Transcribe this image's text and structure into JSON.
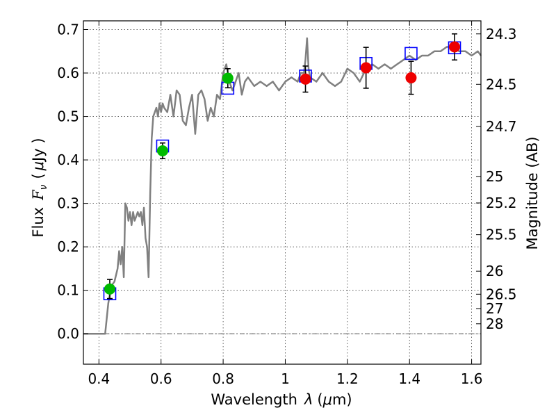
{
  "chart_data": {
    "type": "scatter",
    "xlabel_text": "Wavelength",
    "xlabel_symbol": "λ",
    "xlabel_unit_open": "(",
    "xlabel_unit_mu": "μ",
    "xlabel_unit_rest": "m)",
    "ylabel_text": "Flux",
    "ylabel_symbol": "F",
    "ylabel_sub": "ν",
    "ylabel_unit_open": "(",
    "ylabel_unit_mu": "μ",
    "ylabel_unit_rest": "Jy )",
    "y2label": "Magnitude (AB)",
    "xlim": [
      0.35,
      1.63
    ],
    "ylim": [
      -0.07,
      0.72
    ],
    "grid": true,
    "x_ticks": [
      0.4,
      0.6,
      0.8,
      1.0,
      1.2,
      1.4,
      1.6
    ],
    "x_tick_labels": [
      "0.4",
      "0.6",
      "0.8",
      "1",
      "1.2",
      "1.4",
      "1.6"
    ],
    "y_ticks": [
      0.0,
      0.1,
      0.2,
      0.3,
      0.4,
      0.5,
      0.6,
      0.7
    ],
    "y_tick_labels": [
      "0.0",
      "0.1",
      "0.2",
      "0.3",
      "0.4",
      "0.5",
      "0.6",
      "0.7"
    ],
    "magnitude_ticks": [
      {
        "label": "24.3",
        "flux": 0.69
      },
      {
        "label": "24.5",
        "flux": 0.574
      },
      {
        "label": "24.7",
        "flux": 0.477
      },
      {
        "label": "25",
        "flux": 0.362
      },
      {
        "label": "25.2",
        "flux": 0.301
      },
      {
        "label": "25.5",
        "flux": 0.228
      },
      {
        "label": "26",
        "flux": 0.144
      },
      {
        "label": "26.5",
        "flux": 0.091
      },
      {
        "label": "27",
        "flux": 0.058
      },
      {
        "label": "28",
        "flux": 0.023
      }
    ],
    "zero_line_y": 0.0,
    "colors": {
      "model": "#808080",
      "model_points": "#0000ff",
      "green_points": "#00bb00",
      "red_points": "#ee0000",
      "errorbar": "#000000",
      "zero_line": "#555555"
    },
    "series": [
      {
        "name": "Model SED",
        "kind": "line",
        "x": [
          0.35,
          0.41,
          0.42,
          0.43,
          0.44,
          0.45,
          0.46,
          0.465,
          0.47,
          0.475,
          0.48,
          0.485,
          0.49,
          0.495,
          0.5,
          0.505,
          0.51,
          0.515,
          0.52,
          0.525,
          0.53,
          0.535,
          0.54,
          0.545,
          0.55,
          0.555,
          0.56,
          0.565,
          0.57,
          0.575,
          0.58,
          0.585,
          0.59,
          0.595,
          0.6,
          0.605,
          0.61,
          0.62,
          0.63,
          0.64,
          0.65,
          0.66,
          0.67,
          0.68,
          0.69,
          0.7,
          0.71,
          0.72,
          0.73,
          0.74,
          0.75,
          0.76,
          0.77,
          0.78,
          0.79,
          0.8,
          0.81,
          0.82,
          0.83,
          0.84,
          0.85,
          0.86,
          0.87,
          0.88,
          0.9,
          0.92,
          0.94,
          0.96,
          0.98,
          1.0,
          1.02,
          1.04,
          1.05,
          1.06,
          1.065,
          1.07,
          1.075,
          1.08,
          1.1,
          1.12,
          1.14,
          1.16,
          1.18,
          1.2,
          1.22,
          1.24,
          1.26,
          1.28,
          1.3,
          1.32,
          1.34,
          1.36,
          1.38,
          1.4,
          1.42,
          1.44,
          1.46,
          1.48,
          1.5,
          1.52,
          1.54,
          1.56,
          1.58,
          1.6,
          1.62,
          1.63
        ],
        "y": [
          0.0,
          0.0,
          0.0,
          0.07,
          0.11,
          0.12,
          0.15,
          0.19,
          0.16,
          0.2,
          0.13,
          0.3,
          0.29,
          0.26,
          0.28,
          0.25,
          0.28,
          0.26,
          0.27,
          0.28,
          0.27,
          0.28,
          0.25,
          0.29,
          0.22,
          0.2,
          0.13,
          0.32,
          0.45,
          0.5,
          0.51,
          0.52,
          0.5,
          0.53,
          0.51,
          0.53,
          0.52,
          0.51,
          0.55,
          0.5,
          0.56,
          0.55,
          0.49,
          0.48,
          0.52,
          0.55,
          0.46,
          0.55,
          0.56,
          0.54,
          0.49,
          0.52,
          0.5,
          0.55,
          0.54,
          0.6,
          0.62,
          0.58,
          0.56,
          0.58,
          0.6,
          0.55,
          0.58,
          0.59,
          0.57,
          0.58,
          0.57,
          0.58,
          0.56,
          0.58,
          0.59,
          0.58,
          0.6,
          0.6,
          0.63,
          0.68,
          0.61,
          0.59,
          0.58,
          0.6,
          0.58,
          0.57,
          0.58,
          0.61,
          0.6,
          0.58,
          0.61,
          0.62,
          0.61,
          0.62,
          0.61,
          0.62,
          0.63,
          0.64,
          0.63,
          0.64,
          0.64,
          0.65,
          0.65,
          0.66,
          0.66,
          0.65,
          0.65,
          0.64,
          0.65,
          0.64
        ]
      },
      {
        "name": "Model photometry",
        "kind": "open-square",
        "x": [
          0.435,
          0.605,
          0.815,
          1.065,
          1.26,
          1.405,
          1.545
        ],
        "y": [
          0.092,
          0.432,
          0.565,
          0.593,
          0.622,
          0.645,
          0.658
        ]
      },
      {
        "name": "Observed (green)",
        "kind": "filled-circle",
        "x": [
          0.435,
          0.605,
          0.815
        ],
        "y": [
          0.103,
          0.421,
          0.588
        ],
        "yerr": [
          0.022,
          0.018,
          0.022
        ]
      },
      {
        "name": "Observed (red)",
        "kind": "filled-circle",
        "x": [
          1.065,
          1.26,
          1.405,
          1.545
        ],
        "y": [
          0.586,
          0.612,
          0.589,
          0.66
        ],
        "yerr": [
          0.03,
          0.047,
          0.038,
          0.03
        ]
      }
    ]
  }
}
